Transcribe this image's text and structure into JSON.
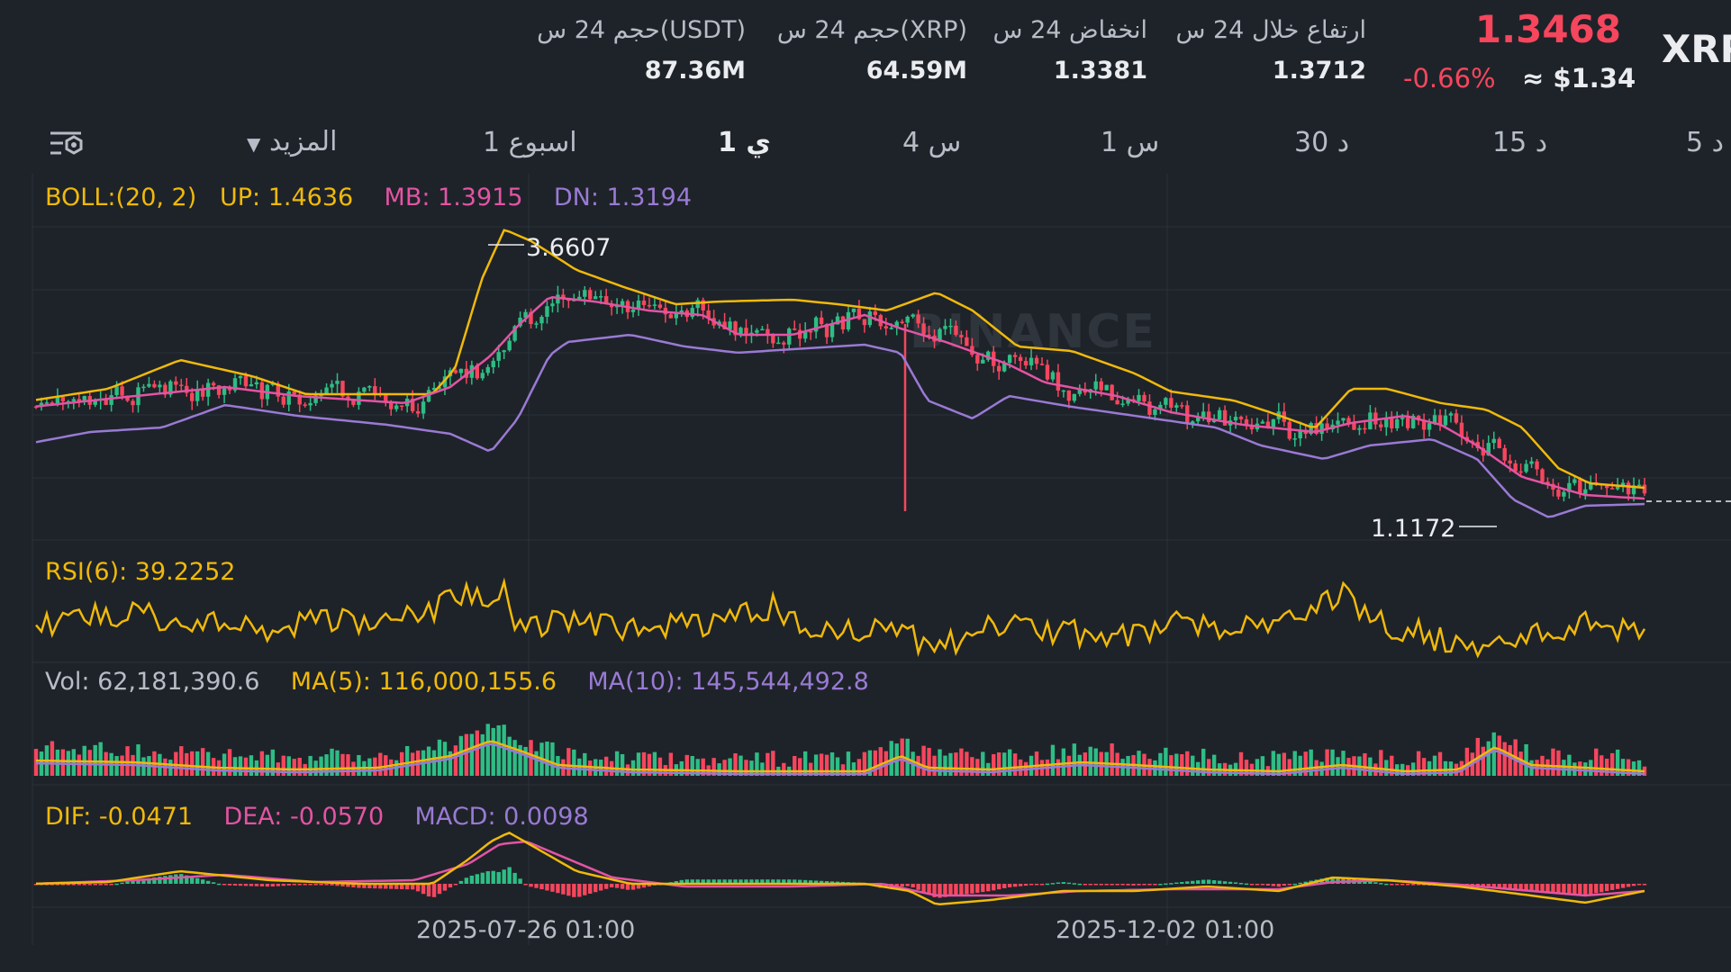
{
  "header": {
    "pair_partial": "XRP",
    "last_price": "1.3468",
    "change_pct": "-0.66%",
    "usd_price": "≈ $1.34",
    "stats": [
      {
        "label": "ارتفاع خلال 24 س",
        "value": "1.3712"
      },
      {
        "label": "انخفاض 24 س",
        "value": "1.3381"
      },
      {
        "label": "حجم 24 س(XRP)",
        "value": "64.59M"
      },
      {
        "label": "حجم 24 س(USDT)",
        "value": "87.36M"
      }
    ]
  },
  "timeframes": {
    "items": [
      "5 د",
      "15 د",
      "30 د",
      "1 س",
      "4 س",
      "1 ي",
      "1 اسبوع"
    ],
    "active": "1 ي",
    "more": "المزيد"
  },
  "boll": {
    "name": "BOLL:(20, 2)",
    "up": "UP: 1.4636",
    "mb": "MB: 1.3915",
    "dn": "DN: 1.3194"
  },
  "rsi": {
    "label": "RSI(6): 39.2252"
  },
  "vol": {
    "label": "Vol: 62,181,390.6",
    "ma5": "MA(5): 116,000,155.6",
    "ma10": "MA(10): 145,544,492.8"
  },
  "macd": {
    "dif": "DIF: -0.0471",
    "dea": "DEA: -0.0570",
    "macd": "MACD: 0.0098"
  },
  "price_chart": {
    "high_marker": "3.6607",
    "low_marker": "1.1172",
    "watermark": "BINANCE"
  },
  "x_axis": {
    "labels": [
      "2025-07-26 01:00",
      "2025-12-02 01:00"
    ]
  },
  "colors": {
    "up": "#2ebd85",
    "down": "#f6465d",
    "boll_up": "#f0b90b",
    "boll_mb": "#e354a4",
    "boll_dn": "#9a7ad4",
    "bg": "#1e2329"
  }
}
